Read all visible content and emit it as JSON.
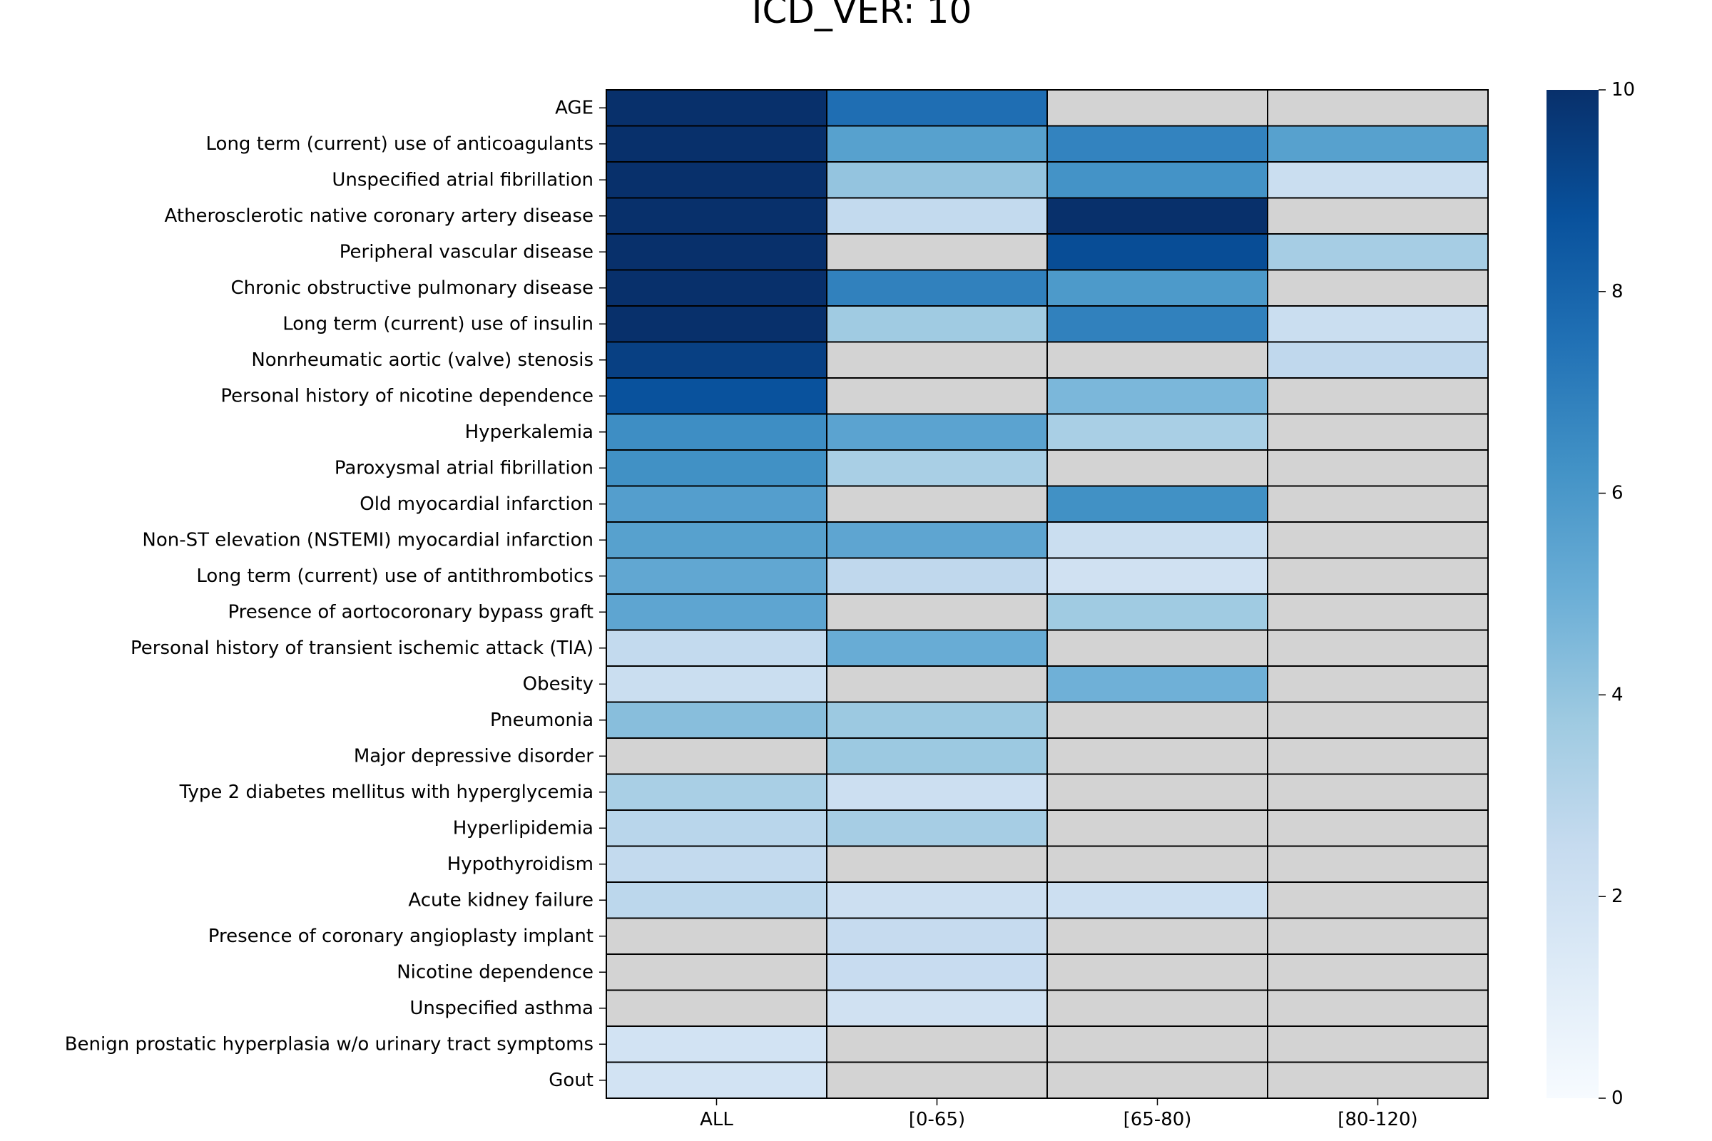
{
  "chart_data": {
    "type": "heatmap",
    "title": "ICD_VER: 10",
    "xlabel": "",
    "ylabel": "",
    "columns": [
      "ALL",
      "[0-65)",
      "[65-80)",
      "[80-120)"
    ],
    "rows": [
      "AGE",
      "Long term (current) use of anticoagulants",
      "Unspecified atrial fibrillation",
      "Atherosclerotic native coronary artery disease",
      "Peripheral vascular disease",
      "Chronic obstructive pulmonary disease",
      "Long term (current) use of insulin",
      "Nonrheumatic aortic (valve) stenosis",
      "Personal history of nicotine dependence",
      "Hyperkalemia",
      "Paroxysmal atrial fibrillation",
      "Old myocardial infarction",
      "Non-ST elevation (NSTEMI) myocardial infarction",
      "Long term (current) use of antithrombotics",
      "Presence of aortocoronary bypass graft",
      "Personal history of transient ischemic attack (TIA)",
      "Obesity",
      "Pneumonia",
      "Major depressive disorder",
      "Type 2 diabetes mellitus with hyperglycemia",
      "Hyperlipidemia",
      "Hypothyroidism",
      "Acute kidney failure",
      "Presence of coronary angioplasty implant",
      "Nicotine dependence",
      "Unspecified asthma",
      "Benign prostatic hyperplasia w/o urinary tract symptoms",
      "Gout"
    ],
    "values": [
      [
        10,
        7.6,
        null,
        null
      ],
      [
        10,
        5.6,
        6.8,
        5.6
      ],
      [
        10,
        4.0,
        6.2,
        2.3
      ],
      [
        10,
        2.6,
        10,
        null
      ],
      [
        10,
        null,
        8.9,
        3.5
      ],
      [
        10,
        6.9,
        5.9,
        null
      ],
      [
        10,
        3.7,
        6.9,
        2.3
      ],
      [
        9.4,
        null,
        null,
        2.7
      ],
      [
        8.7,
        null,
        4.6,
        null
      ],
      [
        6.4,
        5.5,
        3.4,
        null
      ],
      [
        6.3,
        3.4,
        null,
        null
      ],
      [
        5.7,
        null,
        6.3,
        null
      ],
      [
        5.6,
        5.4,
        2.3,
        null
      ],
      [
        5.3,
        2.7,
        2.0,
        null
      ],
      [
        5.4,
        null,
        3.7,
        null
      ],
      [
        2.6,
        5.1,
        null,
        null
      ],
      [
        2.3,
        null,
        4.9,
        null
      ],
      [
        4.3,
        3.8,
        null,
        null
      ],
      [
        null,
        3.8,
        null,
        null
      ],
      [
        3.4,
        2.2,
        null,
        null
      ],
      [
        2.9,
        3.5,
        null,
        null
      ],
      [
        2.6,
        null,
        null,
        null
      ],
      [
        2.8,
        2.2,
        2.2,
        null
      ],
      [
        null,
        2.5,
        null,
        null
      ],
      [
        null,
        2.4,
        null,
        null
      ],
      [
        null,
        2.0,
        null,
        null
      ],
      [
        1.9,
        null,
        null,
        null
      ],
      [
        1.9,
        null,
        null,
        null
      ]
    ],
    "vmin": 0,
    "vmax": 10,
    "colormap": "Blues",
    "missing_color": "#d3d3d3",
    "colorbar_ticks": [
      0,
      2,
      4,
      6,
      8,
      10
    ],
    "legend": "right",
    "grid": true
  }
}
